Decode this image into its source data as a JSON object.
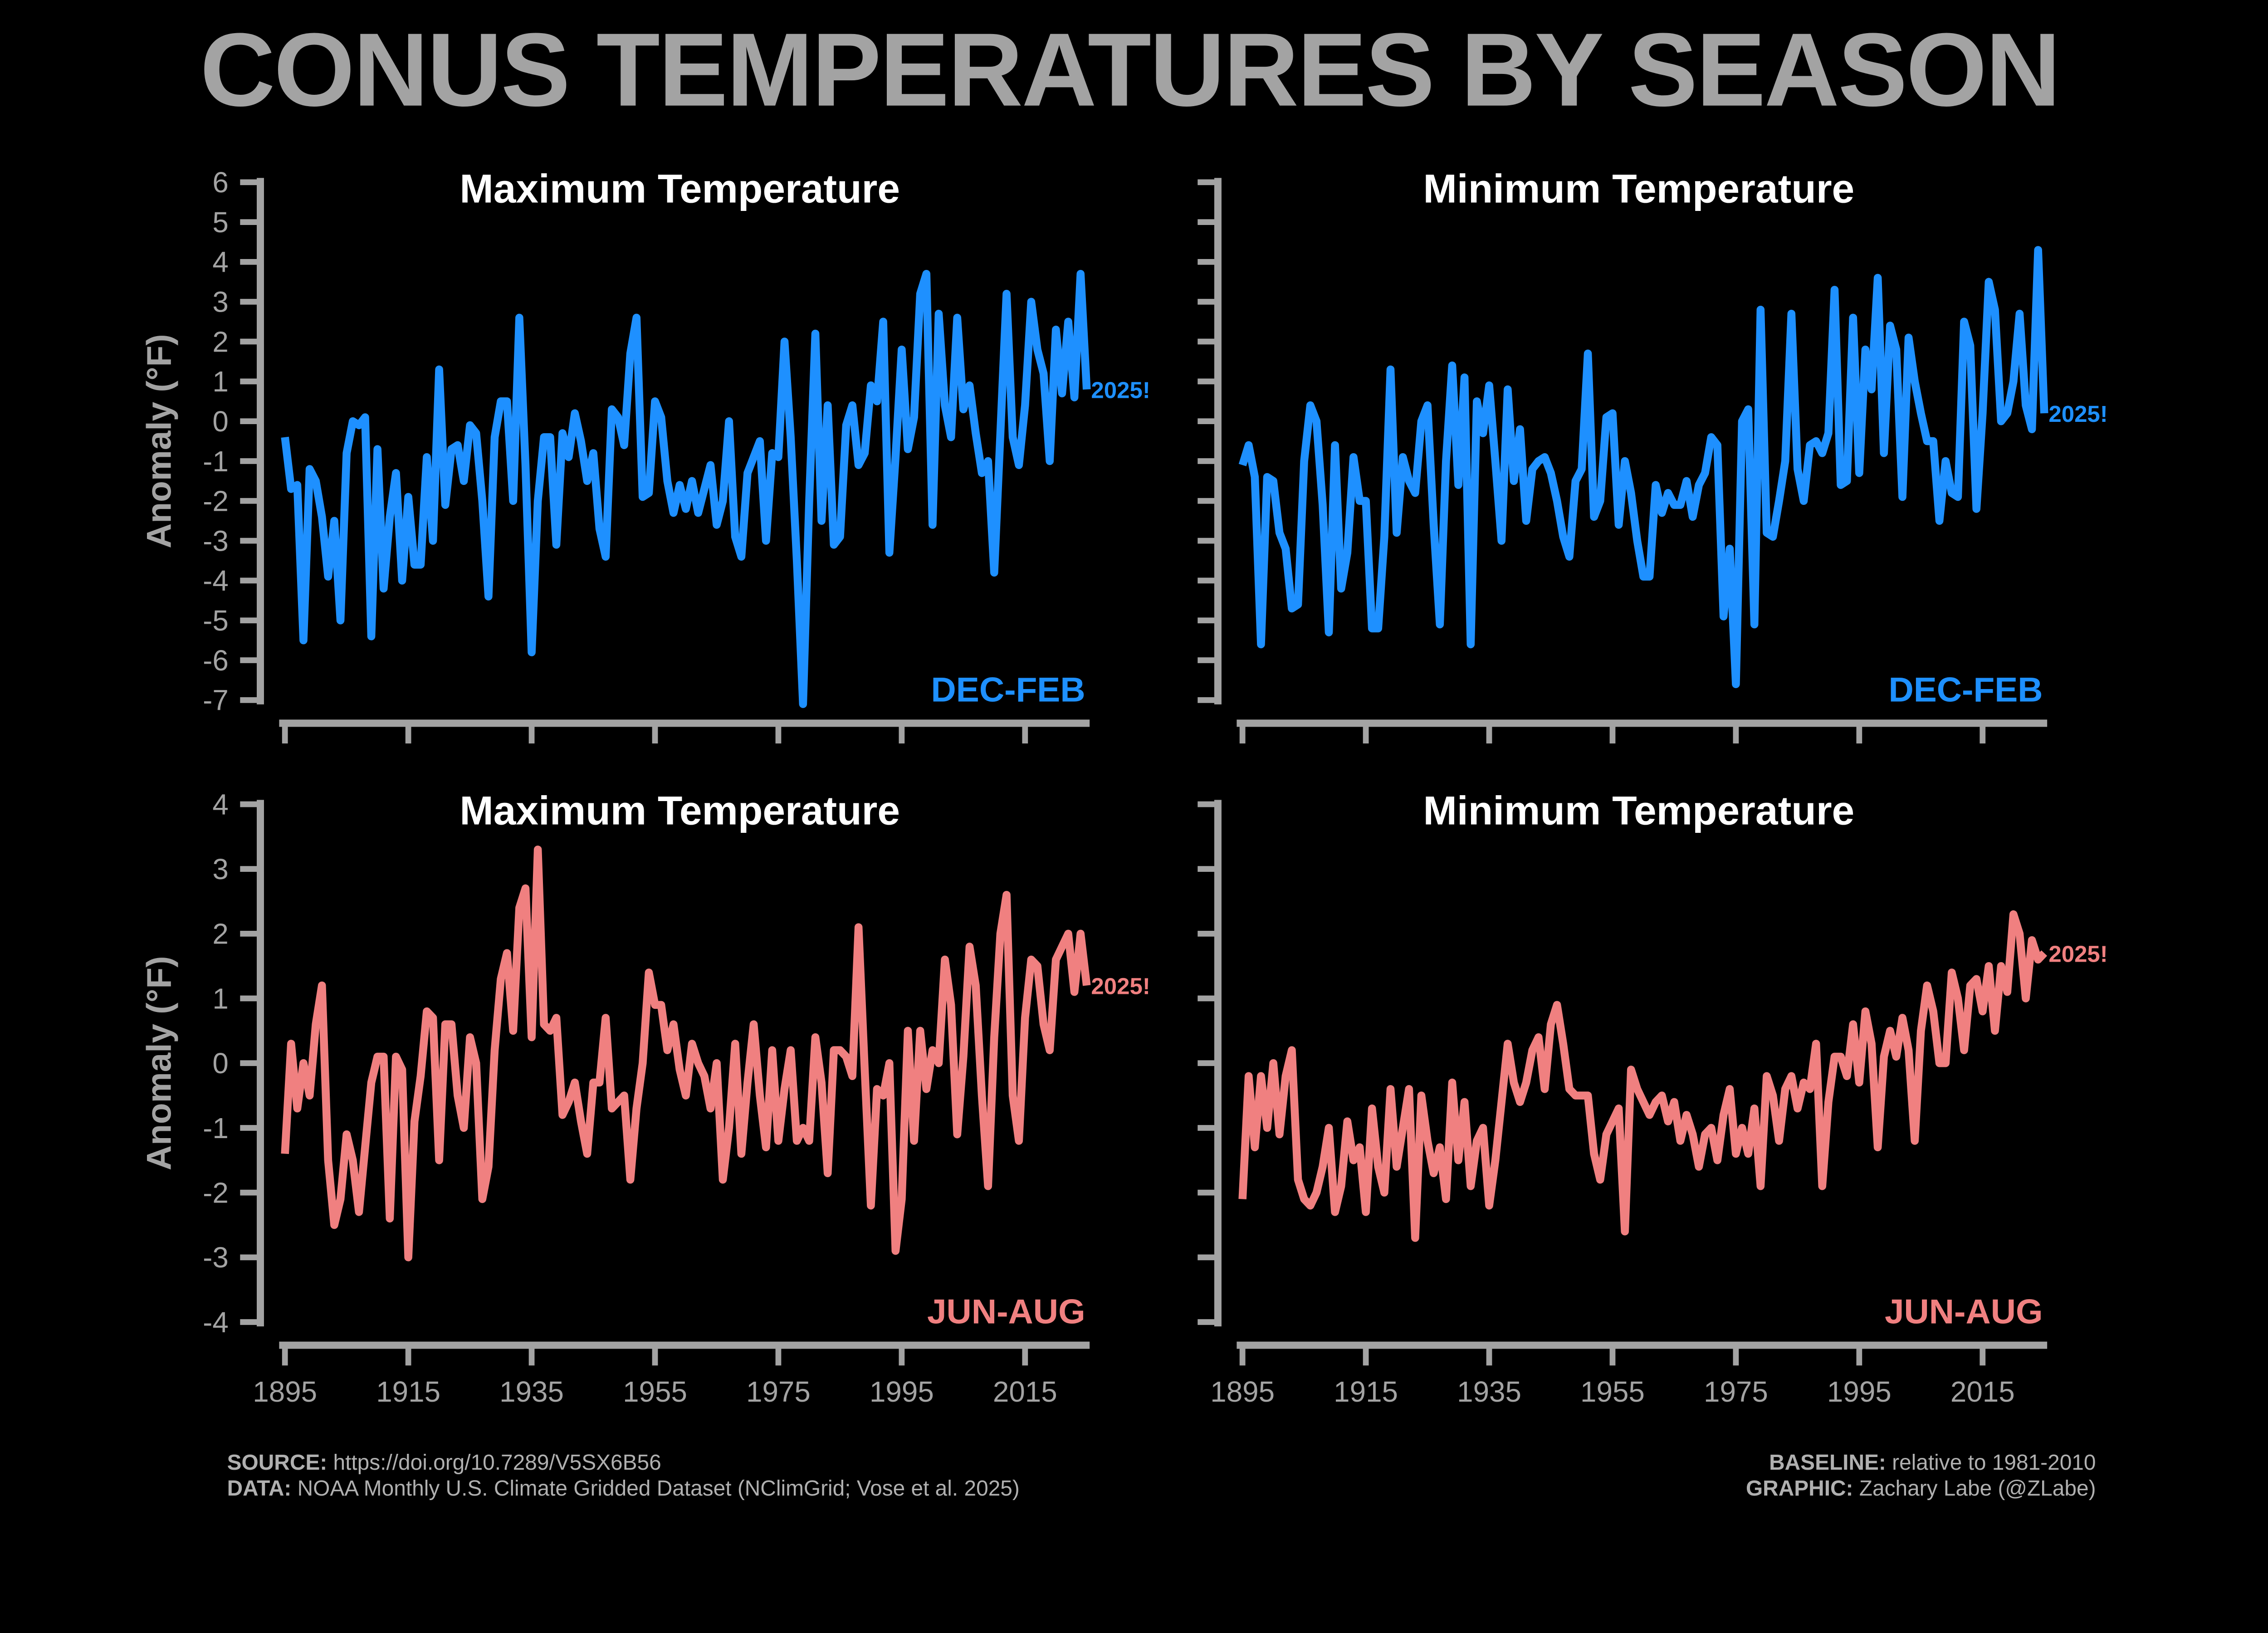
{
  "title": "CONUS TEMPERATURES BY SEASON",
  "footer": {
    "source_label": "SOURCE:",
    "source": " https://doi.org/10.7289/V5SX6B56",
    "data_label": "DATA:",
    "data": " NOAA Monthly U.S. Climate Gridded Dataset (NClimGrid; Vose et al. 2025)",
    "baseline_label": "BASELINE:",
    "baseline": " relative to 1981-2010",
    "graphic_label": "GRAPHIC:",
    "graphic": " Zachary Labe (@ZLabe)"
  },
  "colors": {
    "background": "#000000",
    "axis": "#a3a3a3",
    "winter": "#1e90ff",
    "summer": "#f08080",
    "title": "#a3a3a3"
  },
  "chart_data": [
    {
      "type": "line",
      "title": "Maximum Temperature",
      "season": "DEC-FEB",
      "annotation": "2025!",
      "ylabel": "Anomaly (°F)",
      "ylim": [
        -7,
        6
      ],
      "yticks": [
        6,
        5,
        4,
        3,
        2,
        1,
        0,
        -1,
        -2,
        -3,
        -4,
        -5,
        -6,
        -7
      ],
      "xticks": [
        1895,
        1915,
        1935,
        1955,
        1975,
        1995,
        2015
      ],
      "show_yticklabels": true,
      "show_xticklabels": false,
      "color": "#1e90ff",
      "x_start": 1895,
      "x_end": 2025,
      "values": [
        -0.4,
        -1.7,
        -1.6,
        -5.5,
        -1.2,
        -1.5,
        -2.4,
        -3.9,
        -2.5,
        -5.0,
        -0.8,
        0.0,
        -0.1,
        0.1,
        -5.4,
        -0.7,
        -4.2,
        -2.4,
        -1.3,
        -4.0,
        -1.9,
        -3.6,
        -3.6,
        -0.9,
        -3.0,
        1.3,
        -2.1,
        -0.7,
        -0.6,
        -1.5,
        -0.1,
        -0.3,
        -2.0,
        -4.4,
        -0.4,
        0.5,
        0.5,
        -2.0,
        2.6,
        -1.1,
        -5.8,
        -2.0,
        -0.4,
        -0.4,
        -3.1,
        -0.3,
        -0.9,
        0.2,
        -0.5,
        -1.5,
        -0.8,
        -2.7,
        -3.4,
        0.3,
        0.1,
        -0.6,
        1.7,
        2.6,
        -1.9,
        -1.8,
        0.5,
        0.1,
        -1.5,
        -2.3,
        -1.6,
        -2.2,
        -1.5,
        -2.3,
        -1.7,
        -1.1,
        -2.6,
        -2.0,
        0.0,
        -2.9,
        -3.4,
        -1.3,
        -0.9,
        -0.5,
        -3.0,
        -0.8,
        -0.9,
        2.0,
        -0.4,
        -3.5,
        -7.1,
        -2.0,
        2.2,
        -2.5,
        0.4,
        -3.1,
        -2.9,
        -0.1,
        0.4,
        -1.1,
        -0.8,
        0.9,
        0.5,
        2.5,
        -3.3,
        -0.9,
        1.8,
        -0.7,
        0.1,
        3.2,
        3.7,
        -2.6,
        2.7,
        0.4,
        -0.4,
        2.6,
        0.3,
        0.9,
        -0.3,
        -1.3,
        -1.0,
        -3.8,
        -0.3,
        3.2,
        -0.4,
        -1.1,
        0.4,
        3.0,
        1.8,
        1.2,
        -1.0,
        2.3,
        0.7,
        2.5,
        0.6,
        3.7,
        0.8
      ]
    },
    {
      "type": "line",
      "title": "Minimum Temperature",
      "season": "DEC-FEB",
      "annotation": "2025!",
      "ylim": [
        -7,
        6
      ],
      "yticks": [
        6,
        5,
        4,
        3,
        2,
        1,
        0,
        -1,
        -2,
        -3,
        -4,
        -5,
        -6,
        -7
      ],
      "xticks": [
        1895,
        1915,
        1935,
        1955,
        1975,
        1995,
        2015
      ],
      "show_yticklabels": false,
      "show_xticklabels": false,
      "color": "#1e90ff",
      "x_start": 1895,
      "x_end": 2025,
      "values": [
        -1.1,
        -0.6,
        -1.4,
        -5.6,
        -1.4,
        -1.5,
        -2.8,
        -3.2,
        -4.7,
        -4.6,
        -1.0,
        0.4,
        0.0,
        -2.1,
        -5.3,
        -0.6,
        -4.2,
        -3.3,
        -0.9,
        -2.0,
        -2.0,
        -5.2,
        -5.2,
        -2.9,
        1.3,
        -2.8,
        -0.9,
        -1.5,
        -1.8,
        0.0,
        0.4,
        -2.6,
        -5.1,
        -1.0,
        1.4,
        -1.6,
        1.1,
        -5.6,
        0.5,
        -0.3,
        0.9,
        -1.0,
        -3.0,
        0.8,
        -1.5,
        -0.2,
        -2.5,
        -1.2,
        -1.0,
        -0.9,
        -1.3,
        -2.0,
        -2.9,
        -3.4,
        -1.5,
        -1.2,
        1.7,
        -2.4,
        -2.0,
        0.1,
        0.2,
        -2.6,
        -1.0,
        -1.8,
        -3.0,
        -3.9,
        -3.9,
        -1.6,
        -2.3,
        -1.8,
        -2.1,
        -2.1,
        -1.5,
        -2.4,
        -1.6,
        -1.3,
        -0.4,
        -0.6,
        -4.9,
        -3.2,
        -6.6,
        0.0,
        0.3,
        -5.1,
        2.8,
        -2.8,
        -2.9,
        -2.0,
        -1.0,
        2.7,
        -1.2,
        -2.0,
        -0.6,
        -0.5,
        -0.8,
        -0.3,
        3.3,
        -1.6,
        -1.5,
        2.6,
        -1.3,
        1.8,
        0.8,
        3.6,
        -0.8,
        2.4,
        1.8,
        -1.9,
        2.1,
        1.0,
        0.2,
        -0.5,
        -0.5,
        -2.5,
        -1.0,
        -1.8,
        -1.9,
        2.5,
        1.9,
        -2.2,
        0.2,
        3.5,
        2.8,
        0.0,
        0.2,
        1.0,
        2.7,
        0.4,
        -0.2,
        4.3,
        0.2
      ]
    },
    {
      "type": "line",
      "title": "Maximum Temperature",
      "season": "JUN-AUG",
      "annotation": "2025!",
      "ylabel": "Anomaly (°F)",
      "ylim": [
        -4,
        4
      ],
      "yticks": [
        4,
        3,
        2,
        1,
        0,
        -1,
        -2,
        -3,
        -4
      ],
      "xticks": [
        1895,
        1915,
        1935,
        1955,
        1975,
        1995,
        2015
      ],
      "show_yticklabels": true,
      "show_xticklabels": true,
      "color": "#f08080",
      "x_start": 1895,
      "x_end": 2025,
      "values": [
        -1.4,
        0.3,
        -0.7,
        0.0,
        -0.5,
        0.6,
        1.2,
        -1.5,
        -2.5,
        -2.1,
        -1.1,
        -1.5,
        -2.3,
        -1.3,
        -0.3,
        0.1,
        0.1,
        -2.4,
        0.1,
        -0.1,
        -3.0,
        -0.9,
        -0.2,
        0.8,
        0.7,
        -1.5,
        0.6,
        0.6,
        -0.5,
        -1.0,
        0.4,
        0.0,
        -2.1,
        -1.6,
        0.2,
        1.3,
        1.7,
        0.5,
        2.4,
        2.7,
        0.4,
        3.3,
        0.6,
        0.5,
        0.7,
        -0.8,
        -0.6,
        -0.3,
        -0.9,
        -1.4,
        -0.3,
        -0.3,
        0.7,
        -0.7,
        -0.6,
        -0.5,
        -1.8,
        -0.7,
        0.0,
        1.4,
        0.9,
        0.9,
        0.2,
        0.6,
        -0.1,
        -0.5,
        0.3,
        0.0,
        -0.2,
        -0.7,
        0.0,
        -1.8,
        -1.0,
        0.3,
        -1.4,
        -0.3,
        0.6,
        -0.5,
        -1.3,
        0.2,
        -1.2,
        -0.4,
        0.2,
        -1.2,
        -1.0,
        -1.2,
        0.4,
        -0.3,
        -1.7,
        0.2,
        0.2,
        0.1,
        -0.2,
        2.1,
        -0.1,
        -2.2,
        -0.4,
        -0.5,
        0.0,
        -2.9,
        -2.1,
        0.5,
        -1.2,
        0.5,
        -0.4,
        0.2,
        0.0,
        1.6,
        0.9,
        -1.1,
        0.1,
        1.8,
        1.2,
        -0.5,
        -1.9,
        0.4,
        2.0,
        2.6,
        -0.5,
        -1.2,
        0.7,
        1.6,
        1.5,
        0.6,
        0.2,
        1.6,
        1.8,
        2.0,
        1.1,
        2.0,
        1.2
      ]
    },
    {
      "type": "line",
      "title": "Minimum Temperature",
      "season": "JUN-AUG",
      "annotation": "2025!",
      "ylim": [
        -4,
        4
      ],
      "yticks": [
        4,
        3,
        2,
        1,
        0,
        -1,
        -2,
        -3,
        -4
      ],
      "xticks": [
        1895,
        1915,
        1935,
        1955,
        1975,
        1995,
        2015
      ],
      "show_yticklabels": false,
      "show_xticklabels": true,
      "color": "#f08080",
      "x_start": 1895,
      "x_end": 2025,
      "values": [
        -2.1,
        -0.2,
        -1.3,
        -0.2,
        -1.0,
        0.0,
        -1.1,
        -0.2,
        0.2,
        -1.8,
        -2.1,
        -2.2,
        -2.0,
        -1.6,
        -1.0,
        -2.3,
        -1.9,
        -0.9,
        -1.5,
        -1.3,
        -2.3,
        -0.7,
        -1.6,
        -2.0,
        -0.4,
        -1.6,
        -1.0,
        -0.4,
        -2.7,
        -0.5,
        -1.2,
        -1.7,
        -1.3,
        -2.1,
        -0.3,
        -1.5,
        -0.6,
        -1.9,
        -1.2,
        -1.0,
        -2.2,
        -1.5,
        -0.6,
        0.3,
        -0.3,
        -0.6,
        -0.3,
        0.2,
        0.4,
        -0.4,
        0.6,
        0.9,
        0.3,
        -0.4,
        -0.5,
        -0.5,
        -0.5,
        -1.4,
        -1.8,
        -1.1,
        -0.9,
        -0.7,
        -2.6,
        -0.1,
        -0.4,
        -0.6,
        -0.8,
        -0.6,
        -0.5,
        -0.9,
        -0.6,
        -1.2,
        -0.8,
        -1.1,
        -1.6,
        -1.1,
        -1.0,
        -1.5,
        -0.8,
        -0.4,
        -1.4,
        -1.0,
        -1.4,
        -0.7,
        -1.9,
        -0.2,
        -0.5,
        -1.2,
        -0.4,
        -0.2,
        -0.7,
        -0.3,
        -0.4,
        0.3,
        -1.9,
        -0.6,
        0.1,
        0.1,
        -0.2,
        0.6,
        -0.3,
        0.8,
        0.3,
        -1.3,
        0.1,
        0.5,
        0.1,
        0.7,
        0.2,
        -1.2,
        0.5,
        1.2,
        0.8,
        0.0,
        0.0,
        1.4,
        1.0,
        0.2,
        1.2,
        1.3,
        0.8,
        1.5,
        0.5,
        1.5,
        1.1,
        2.3,
        2.0,
        1.0,
        1.9,
        1.6,
        1.7
      ]
    }
  ]
}
